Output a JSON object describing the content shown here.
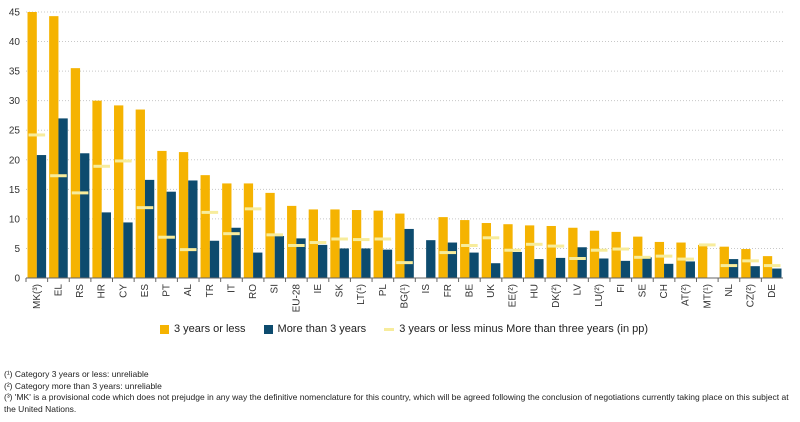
{
  "chart_data": {
    "type": "bar",
    "categories": [
      "MK(³)",
      "EL",
      "RS",
      "HR",
      "CY",
      "ES",
      "PT",
      "AL",
      "TR",
      "IT",
      "RO",
      "SI",
      "EU-28",
      "IE",
      "SK",
      "LT(¹)",
      "PL",
      "BG(¹)",
      "IS",
      "FR",
      "BE",
      "UK",
      "EE(²)",
      "HU",
      "DK(²)",
      "LV",
      "LU(²)",
      "FI",
      "SE",
      "CH",
      "AT(²)",
      "MT(¹)",
      "NL",
      "CZ(²)",
      "DE"
    ],
    "series": [
      {
        "name": "3 years or less",
        "color": "#f5b301",
        "values": [
          45.0,
          44.3,
          35.5,
          30.0,
          29.2,
          28.5,
          21.5,
          21.3,
          17.4,
          16.0,
          16.0,
          14.4,
          12.2,
          11.6,
          11.6,
          11.5,
          11.4,
          10.9,
          null,
          10.3,
          9.8,
          9.3,
          9.1,
          8.9,
          8.8,
          8.5,
          8.0,
          7.8,
          7.0,
          6.1,
          6.0,
          5.6,
          5.3,
          4.9,
          3.7
        ]
      },
      {
        "name": "More than 3 years",
        "color": "#0d4b6e",
        "values": [
          20.8,
          27.0,
          21.1,
          11.1,
          9.4,
          16.6,
          14.6,
          16.5,
          6.3,
          8.5,
          4.3,
          7.1,
          6.7,
          5.6,
          5.0,
          5.0,
          4.8,
          8.3,
          6.4,
          6.0,
          4.3,
          2.5,
          4.4,
          3.2,
          3.4,
          5.2,
          3.3,
          2.9,
          3.5,
          2.4,
          2.8,
          0.0,
          3.2,
          2.0,
          1.6
        ]
      },
      {
        "name": "3 years or less minus More than three years (in pp)",
        "color": "#f7ec9c",
        "kind": "marker",
        "values": [
          24.2,
          17.3,
          14.4,
          18.9,
          19.8,
          11.9,
          6.9,
          4.8,
          11.1,
          7.5,
          11.7,
          7.3,
          5.5,
          6.0,
          6.6,
          6.5,
          6.6,
          2.6,
          null,
          4.3,
          5.5,
          6.8,
          4.7,
          5.7,
          5.4,
          3.3,
          4.7,
          4.9,
          3.5,
          3.7,
          3.2,
          5.6,
          2.1,
          2.9,
          2.1
        ]
      }
    ],
    "title": "",
    "xlabel": "",
    "ylabel": "",
    "ylim": [
      0,
      45
    ],
    "yticks": [
      0,
      5,
      10,
      15,
      20,
      25,
      30,
      35,
      40,
      45
    ],
    "grid": true,
    "legend_position": "bottom"
  },
  "legend": {
    "short": "3 years or less",
    "long": "More than 3 years",
    "diff": "3 years or less minus More than three years (in pp)"
  },
  "notes": {
    "n1": "(¹) Category 3 years or less: unreliable",
    "n2": "(²) Category more than 3 years: unreliable",
    "n3": "(³) 'MK' is a provisional code which does not prejudge in any way the definitive nomenclature for this country, which will be agreed following the conclusion of negotiations currently taking place on this subject at the United Nations."
  }
}
